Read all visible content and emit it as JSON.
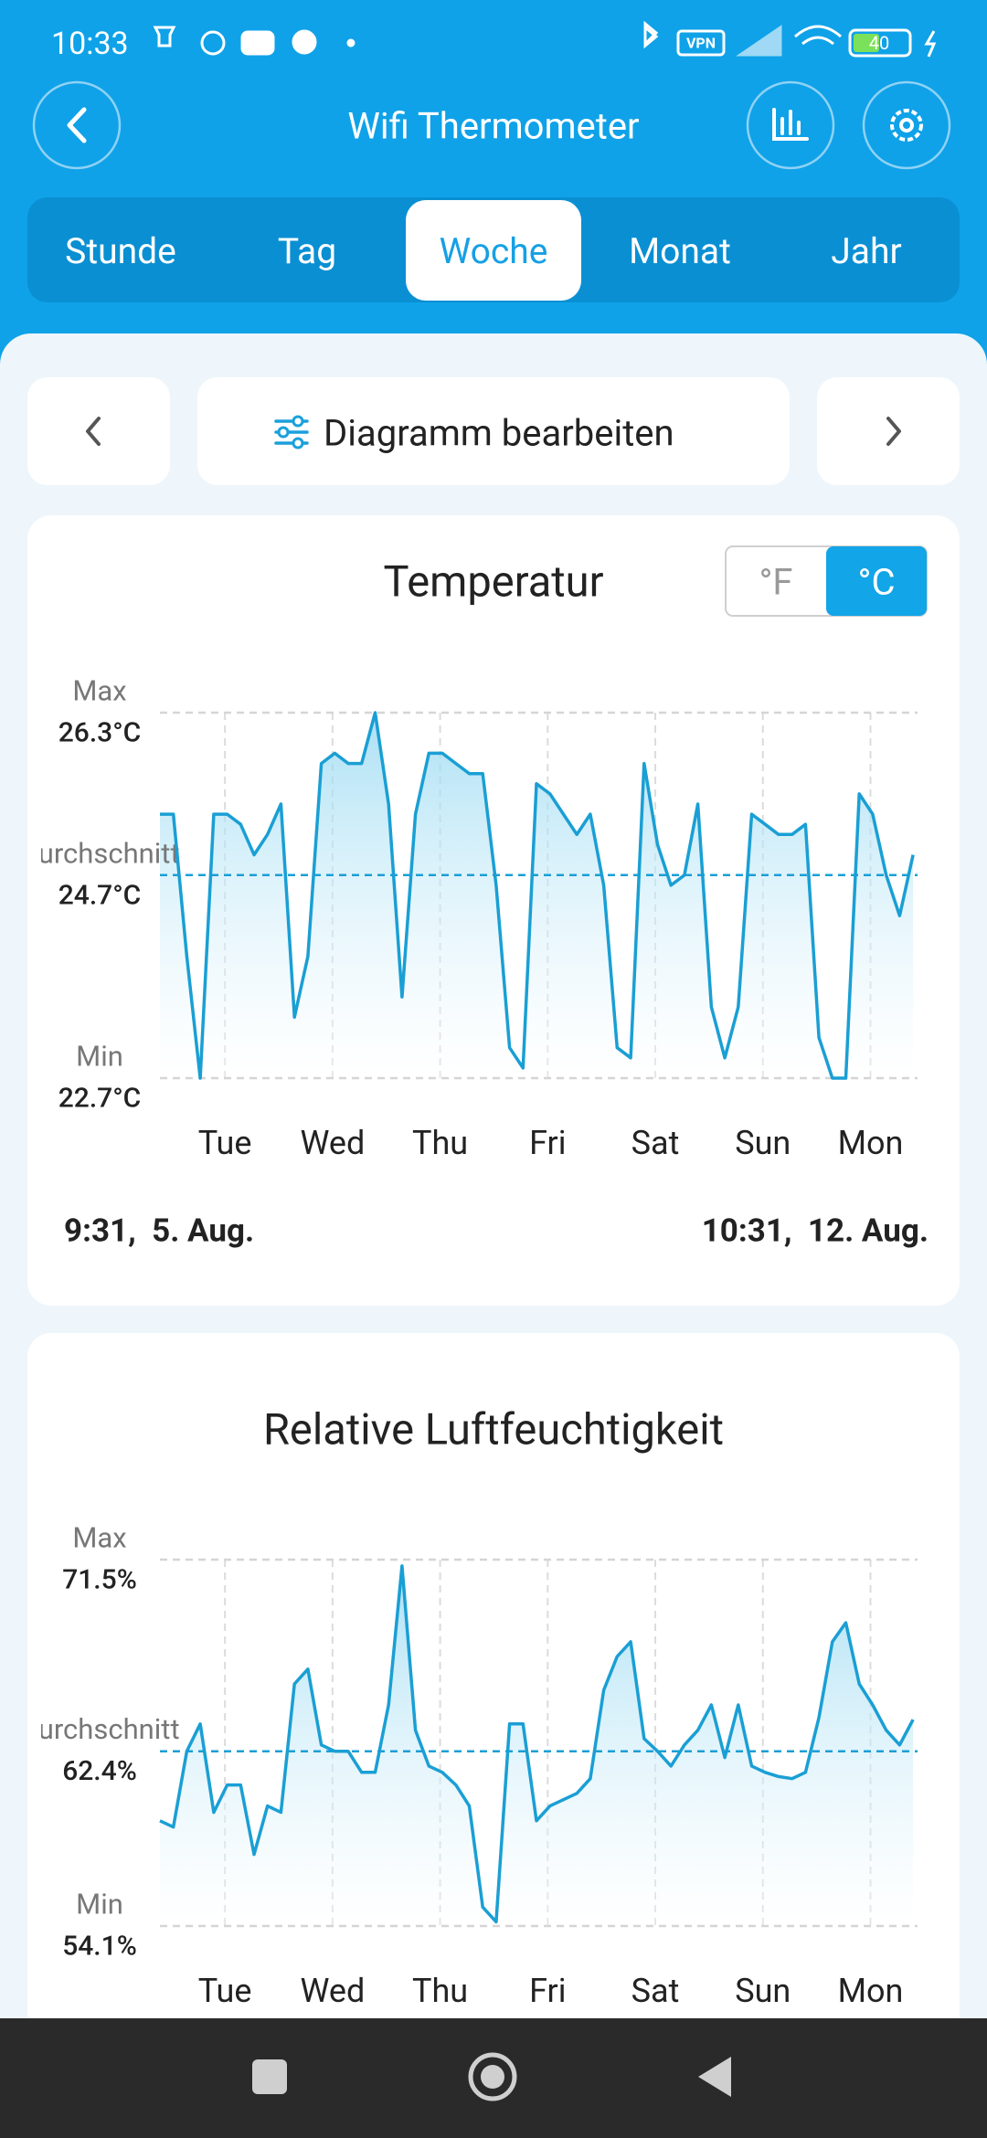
{
  "status_bar": {
    "time": "10:33",
    "vpn": "VPN",
    "battery": "40"
  },
  "header": {
    "title": "Wifi Thermometer"
  },
  "tabs": [
    "Stunde",
    "Tag",
    "Woche",
    "Monat",
    "Jahr"
  ],
  "active_tab": 2,
  "toolbar": {
    "edit_label": "Diagramm bearbeiten"
  },
  "chart_data": [
    {
      "type": "line",
      "title": "Temperatur",
      "unit_options": [
        "°F",
        "°C"
      ],
      "active_unit": 1,
      "color": "#1a9fd4",
      "x": [
        0,
        3,
        6,
        9,
        12,
        15,
        18,
        21,
        24,
        27,
        30,
        33,
        36,
        39,
        42,
        45,
        48,
        51,
        54,
        57,
        60,
        63,
        66,
        69,
        72,
        75,
        78,
        81,
        84,
        87,
        90,
        93,
        96,
        99,
        102,
        105,
        108,
        111,
        114,
        117,
        120,
        123,
        126,
        129,
        132,
        135,
        138,
        141,
        144,
        147,
        150,
        153,
        156,
        159,
        162,
        165,
        168
      ],
      "values": [
        25.3,
        25.3,
        23.9,
        22.7,
        25.3,
        25.3,
        25.2,
        24.9,
        25.1,
        25.4,
        23.3,
        23.9,
        25.8,
        25.9,
        25.8,
        25.8,
        26.3,
        25.4,
        23.5,
        25.3,
        25.9,
        25.9,
        25.8,
        25.7,
        25.7,
        24.6,
        23.0,
        22.8,
        25.6,
        25.5,
        25.3,
        25.1,
        25.3,
        24.6,
        23.0,
        22.9,
        25.8,
        25.0,
        24.6,
        24.7,
        25.4,
        23.4,
        22.9,
        23.4,
        25.3,
        25.2,
        25.1,
        25.1,
        25.2,
        23.1,
        22.7,
        22.7,
        25.5,
        25.3,
        24.7,
        24.3,
        24.9
      ],
      "xlim": [
        0,
        169
      ],
      "xticks": [
        {
          "value": 14.5,
          "label": "Tue"
        },
        {
          "value": 38.5,
          "label": "Wed"
        },
        {
          "value": 62.5,
          "label": "Thu"
        },
        {
          "value": 86.5,
          "label": "Fri"
        },
        {
          "value": 110.5,
          "label": "Sat"
        },
        {
          "value": 134.5,
          "label": "Sun"
        },
        {
          "value": 158.5,
          "label": "Mon"
        }
      ],
      "ylim": [
        22.7,
        26.3
      ],
      "ref_lines": [
        {
          "name": "Max",
          "value": 26.3,
          "label": "26.3°C",
          "color": "#d5d5d5"
        },
        {
          "name": "Durchschnitt",
          "value": 24.7,
          "label": "24.7°C",
          "color": "#1a9fd4"
        },
        {
          "name": "Min",
          "value": 22.7,
          "label": "22.7°C",
          "color": "#d5d5d5"
        }
      ],
      "start_label": "9:31,  5. Aug.",
      "end_label": "10:31,  12. Aug."
    },
    {
      "type": "line",
      "title": "Relative Luftfeuchtigkeit",
      "color": "#1a9fd4",
      "x": [
        0,
        3,
        6,
        9,
        12,
        15,
        18,
        21,
        24,
        27,
        30,
        33,
        36,
        39,
        42,
        45,
        48,
        51,
        54,
        57,
        60,
        63,
        66,
        69,
        72,
        75,
        78,
        81,
        84,
        87,
        90,
        93,
        96,
        99,
        102,
        105,
        108,
        111,
        114,
        117,
        120,
        123,
        126,
        129,
        132,
        135,
        138,
        141,
        144,
        147,
        150,
        153,
        156,
        159,
        162,
        165,
        168
      ],
      "values": [
        59.1,
        58.8,
        62.4,
        63.7,
        59.5,
        60.8,
        60.8,
        57.5,
        59.8,
        59.5,
        65.6,
        66.3,
        62.7,
        62.4,
        62.4,
        61.4,
        61.4,
        64.6,
        71.2,
        63.4,
        61.7,
        61.4,
        60.8,
        59.8,
        55.0,
        54.3,
        63.7,
        63.7,
        59.1,
        59.8,
        60.1,
        60.4,
        61.1,
        65.3,
        66.9,
        67.6,
        63.0,
        62.4,
        61.7,
        62.7,
        63.4,
        64.6,
        62.1,
        64.6,
        61.7,
        61.4,
        61.2,
        61.1,
        61.4,
        64.0,
        67.6,
        68.5,
        65.6,
        64.6,
        63.4,
        62.7,
        63.9
      ],
      "xlim": [
        0,
        169
      ],
      "xticks": [
        {
          "value": 14.5,
          "label": "Tue"
        },
        {
          "value": 38.5,
          "label": "Wed"
        },
        {
          "value": 62.5,
          "label": "Thu"
        },
        {
          "value": 86.5,
          "label": "Fri"
        },
        {
          "value": 110.5,
          "label": "Sat"
        },
        {
          "value": 134.5,
          "label": "Sun"
        },
        {
          "value": 158.5,
          "label": "Mon"
        }
      ],
      "ylim": [
        54.1,
        71.5
      ],
      "ref_lines": [
        {
          "name": "Max",
          "value": 71.5,
          "label": "71.5%",
          "color": "#d5d5d5"
        },
        {
          "name": "Durchschnitt",
          "value": 62.4,
          "label": "62.4%",
          "color": "#1a9fd4"
        },
        {
          "name": "Min",
          "value": 54.1,
          "label": "54.1%",
          "color": "#d5d5d5"
        }
      ]
    }
  ]
}
